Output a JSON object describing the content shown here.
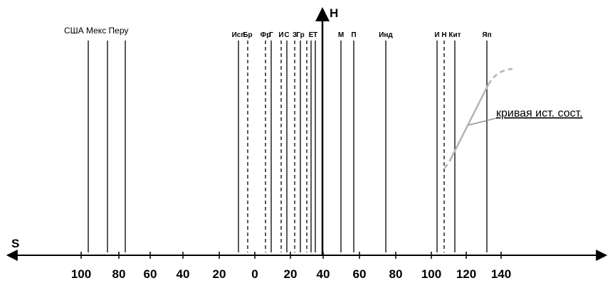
{
  "axis_labels": {
    "vertical": "H",
    "horizontal": "S"
  },
  "tick_labels": [
    "100",
    "80",
    "60",
    "40",
    "20",
    "0",
    "20",
    "40",
    "60",
    "80",
    "100",
    "120",
    "140"
  ],
  "group_label": "США Мекс Перу",
  "lines": [
    {
      "label": "",
      "style": "solid"
    },
    {
      "label": "",
      "style": "solid"
    },
    {
      "label": "",
      "style": "solid"
    },
    {
      "label": "Исп",
      "style": "solid"
    },
    {
      "label": "Бр",
      "style": "dashed"
    },
    {
      "label": "Фр",
      "style": "dashed"
    },
    {
      "label": "Г",
      "style": "solid"
    },
    {
      "label": "И",
      "style": "dashed"
    },
    {
      "label": "С",
      "style": "solid"
    },
    {
      "label": "З",
      "style": "dashed"
    },
    {
      "label": "Гр",
      "style": "solid"
    },
    {
      "label": "",
      "style": "dashed"
    },
    {
      "label": "Е",
      "style": "solid"
    },
    {
      "label": "Т",
      "style": "solid"
    },
    {
      "label": "М",
      "style": "solid"
    },
    {
      "label": "П",
      "style": "solid"
    },
    {
      "label": "Инд",
      "style": "solid"
    },
    {
      "label": "И",
      "style": "solid"
    },
    {
      "label": "Н",
      "style": "dashed"
    },
    {
      "label": "Кит",
      "style": "solid"
    },
    {
      "label": "Яп",
      "style": "solid"
    }
  ],
  "curve_label": "кривая ист. сост.",
  "colors": {
    "curve": "#b4b4b4",
    "ink": "#000000"
  }
}
